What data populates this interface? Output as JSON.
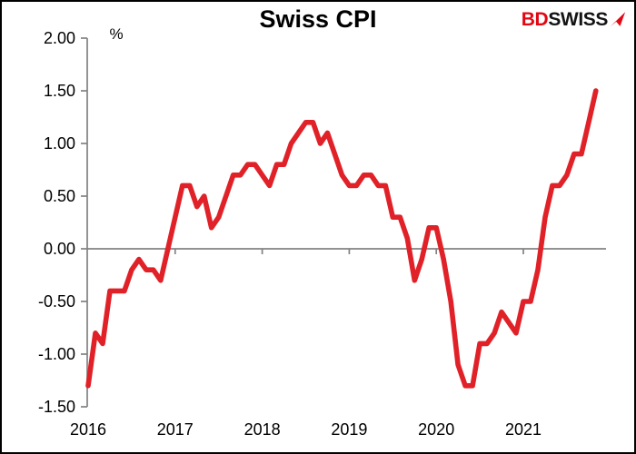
{
  "header": {
    "logo": {
      "prefix": "BD",
      "suffix": "SWISS",
      "arrow_icon": "arrow-up-right",
      "prefix_color": "#e30613",
      "suffix_color": "#141414"
    }
  },
  "chart_data": {
    "type": "line",
    "title": "Swiss CPI",
    "unit_label": "%",
    "frequency": "monthly",
    "x_start": "2016-01",
    "x_end": "2021-11",
    "n_points": 71,
    "x_tick_labels": [
      "2016",
      "2017",
      "2018",
      "2019",
      "2020",
      "2021"
    ],
    "y_tick_labels": [
      "2.00",
      "1.50",
      "1.00",
      "0.50",
      "0.00",
      "-0.50",
      "-1.00",
      "-1.50"
    ],
    "ylim": [
      -1.5,
      2.0
    ],
    "grid": false,
    "legend": "none",
    "zero_line": true,
    "line_color": "#e02128",
    "axis_color": "#828282",
    "label_color": "#000000",
    "values_by_year": {
      "2016": [
        -1.3,
        -0.8,
        -0.9,
        -0.4,
        -0.4,
        -0.4,
        -0.2,
        -0.1,
        -0.2,
        -0.2,
        -0.3,
        0.0
      ],
      "2017": [
        0.3,
        0.6,
        0.6,
        0.4,
        0.5,
        0.2,
        0.3,
        0.5,
        0.7,
        0.7,
        0.8,
        0.8
      ],
      "2018": [
        0.7,
        0.6,
        0.8,
        0.8,
        1.0,
        1.1,
        1.2,
        1.2,
        1.0,
        1.1,
        0.9,
        0.7
      ],
      "2019": [
        0.6,
        0.6,
        0.7,
        0.7,
        0.6,
        0.6,
        0.3,
        0.3,
        0.1,
        -0.3,
        -0.1,
        0.2
      ],
      "2020": [
        0.2,
        -0.1,
        -0.5,
        -1.1,
        -1.3,
        -1.3,
        -0.9,
        -0.9,
        -0.8,
        -0.6,
        -0.7,
        -0.8
      ],
      "2021": [
        -0.5,
        -0.5,
        -0.2,
        0.3,
        0.6,
        0.6,
        0.7,
        0.9,
        0.9,
        1.2,
        1.5
      ]
    }
  }
}
